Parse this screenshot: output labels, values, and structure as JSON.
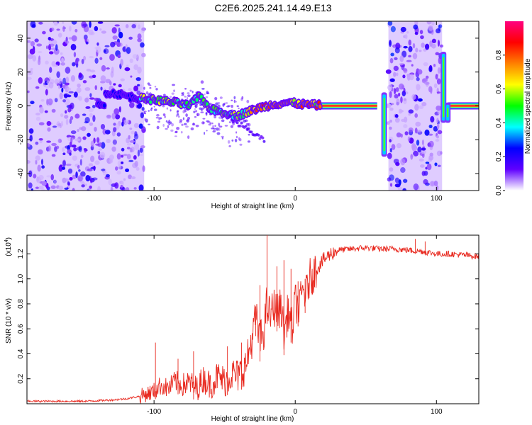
{
  "title": "C2E6.2025.241.14.49.E13",
  "chart_data": [
    {
      "type": "heatmap",
      "xlabel": "Height of straight line (km)",
      "ylabel": "Frequency (Hz)",
      "xlim": [
        -190,
        130
      ],
      "ylim": [
        -50,
        50
      ],
      "xticks": [
        -100,
        0,
        100
      ],
      "xtick_labels": [
        "-100",
        "0",
        "100"
      ],
      "yticks": [
        -40,
        -20,
        0,
        20,
        40
      ],
      "ytick_labels": [
        "-40",
        "-20",
        "0",
        "20",
        "40"
      ],
      "colorbar": {
        "label": "Normalized spectral amplitude",
        "range": [
          0,
          1
        ],
        "ticks": [
          0.0,
          0.2,
          0.4,
          0.6,
          0.8
        ],
        "tick_labels": [
          "0.0",
          "0.2",
          "0.4",
          "0.6",
          "0.8"
        ],
        "colors": [
          "#ffffff",
          "#6000ff",
          "#0000ff",
          "#00ffff",
          "#00ff00",
          "#ffff00",
          "#ff8000",
          "#ff0000",
          "#ff0080"
        ]
      },
      "noise_regions": [
        {
          "x_start": -190,
          "x_end": -107,
          "intensity": 0.12
        },
        {
          "x_start": 66,
          "x_end": 104,
          "intensity": 0.13
        }
      ],
      "signal_track": [
        {
          "x": -135,
          "y": 8
        },
        {
          "x": -125,
          "y": 7
        },
        {
          "x": -115,
          "y": 5
        },
        {
          "x": -105,
          "y": 4
        },
        {
          "x": -95,
          "y": 3
        },
        {
          "x": -85,
          "y": 2
        },
        {
          "x": -75,
          "y": 0
        },
        {
          "x": -68,
          "y": 6
        },
        {
          "x": -60,
          "y": -2
        },
        {
          "x": -50,
          "y": -4
        },
        {
          "x": -42,
          "y": -6
        },
        {
          "x": -35,
          "y": -4
        },
        {
          "x": -25,
          "y": -1
        },
        {
          "x": -15,
          "y": 1
        },
        {
          "x": -5,
          "y": 2
        },
        {
          "x": 5,
          "y": 1
        },
        {
          "x": 15,
          "y": 0.5
        },
        {
          "x": 30,
          "y": 0
        },
        {
          "x": 60,
          "y": 0
        },
        {
          "x": 130,
          "y": 0
        }
      ],
      "tone_segments": [
        {
          "x_start": 18,
          "x_end": 58,
          "y": 0
        },
        {
          "x_start": 108,
          "x_end": 130,
          "y": 0
        }
      ],
      "vertical_streaks": [
        {
          "x": 63,
          "y_min": -30,
          "y_max": 8
        },
        {
          "x": 105,
          "y_min": -10,
          "y_max": 32
        },
        {
          "x": 108,
          "y_min": -10,
          "y_max": 2
        }
      ]
    },
    {
      "type": "line",
      "xlabel": "Height of straight line (km)",
      "ylabel": "SNR (10 * v/v)",
      "yscale_label": "(x10",
      "yscale_exponent": "4",
      "yscale_close": ")",
      "xlim": [
        -190,
        130
      ],
      "ylim": [
        0,
        1.35
      ],
      "xticks": [
        -100,
        0,
        100
      ],
      "xtick_labels": [
        "-100",
        "0",
        "100"
      ],
      "yticks": [
        0.2,
        0.4,
        0.6,
        0.8,
        1.0,
        1.2
      ],
      "ytick_labels": [
        "0.2",
        "0.4",
        "0.6",
        "0.8",
        "1.0",
        "1.2"
      ],
      "line_color": "#e8281e",
      "series": [
        {
          "name": "SNR",
          "x": [
            -190,
            -170,
            -150,
            -130,
            -120,
            -110,
            -100,
            -95,
            -90,
            -85,
            -80,
            -75,
            -70,
            -65,
            -60,
            -55,
            -50,
            -45,
            -40,
            -37,
            -35,
            -32,
            -30,
            -28,
            -25,
            -22,
            -20,
            -18,
            -15,
            -12,
            -10,
            -8,
            -5,
            -2,
            0,
            3,
            5,
            8,
            10,
            15,
            20,
            25,
            30,
            40,
            50,
            60,
            70,
            80,
            90,
            100,
            110,
            120,
            130
          ],
          "y": [
            0.02,
            0.02,
            0.02,
            0.03,
            0.04,
            0.06,
            0.1,
            0.15,
            0.12,
            0.18,
            0.15,
            0.17,
            0.12,
            0.2,
            0.15,
            0.22,
            0.18,
            0.24,
            0.22,
            0.28,
            0.3,
            0.45,
            0.55,
            0.7,
            0.5,
            0.6,
            0.8,
            0.7,
            0.78,
            0.72,
            0.8,
            0.55,
            0.75,
            0.6,
            0.82,
            0.76,
            0.9,
            0.88,
            1.0,
            1.08,
            1.15,
            1.2,
            1.23,
            1.24,
            1.25,
            1.24,
            1.24,
            1.23,
            1.22,
            1.2,
            1.2,
            1.19,
            1.18
          ]
        }
      ],
      "spikes": [
        {
          "x": -99,
          "y": 0.49
        },
        {
          "x": -83,
          "y": 0.36
        },
        {
          "x": -72,
          "y": 0.42
        },
        {
          "x": -48,
          "y": 0.46
        },
        {
          "x": -38,
          "y": 0.49
        },
        {
          "x": -28,
          "y": 0.78
        },
        {
          "x": -25,
          "y": 0.95
        },
        {
          "x": -20,
          "y": 1.35
        },
        {
          "x": -13,
          "y": 1.1
        },
        {
          "x": -8,
          "y": 1.15
        },
        {
          "x": -3,
          "y": 1.08
        },
        {
          "x": 2,
          "y": 0.98
        },
        {
          "x": 7,
          "y": 1.0
        },
        {
          "x": 12,
          "y": 1.08
        },
        {
          "x": 85,
          "y": 1.32
        },
        {
          "x": 92,
          "y": 1.3
        }
      ]
    }
  ]
}
